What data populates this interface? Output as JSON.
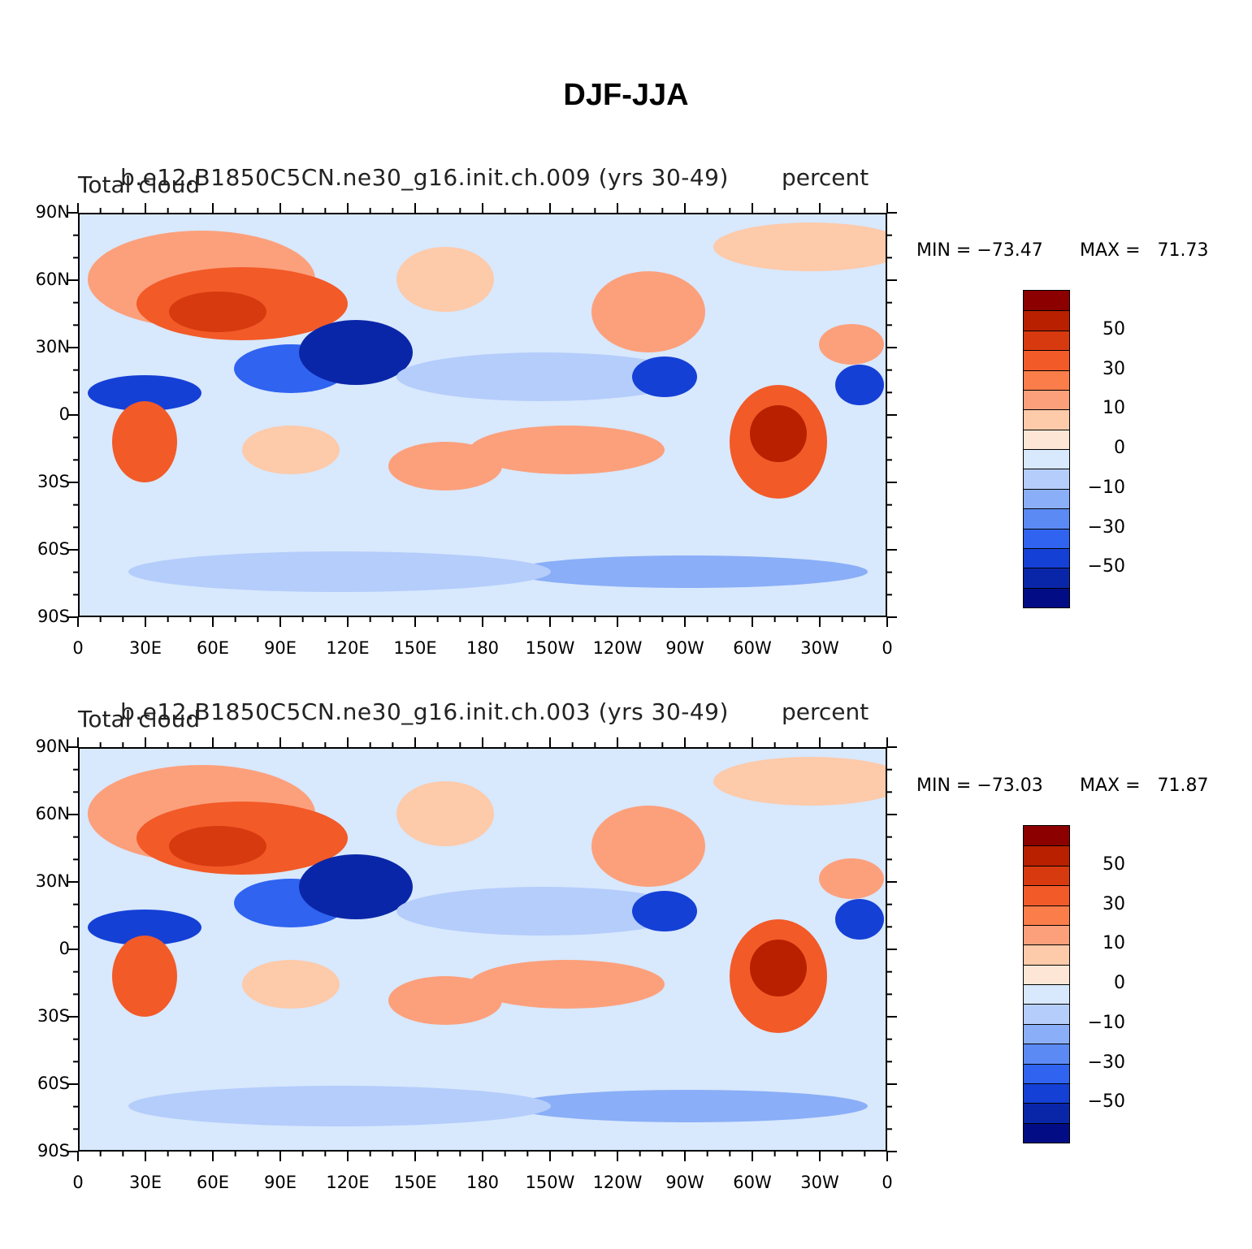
{
  "title": "DJF-JJA",
  "panels": [
    {
      "case_title": "b.e12.B1850C5CN.ne30_g16.init.ch.009 (yrs 30-49)",
      "variable": "Total cloud",
      "units": "percent",
      "min_label": "MIN = −73.47",
      "max_label": "MAX =   71.73"
    },
    {
      "case_title": "b.e12.B1850C5CN.ne30_g16.init.ch.003 (yrs 30-49)",
      "variable": "Total cloud",
      "units": "percent",
      "min_label": "MIN = −73.03",
      "max_label": "MAX =   71.87"
    }
  ],
  "lat_ticks": [
    "90N",
    "60N",
    "30N",
    "0",
    "30S",
    "60S",
    "90S"
  ],
  "lon_ticks": [
    "0",
    "30E",
    "60E",
    "90E",
    "120E",
    "150E",
    "180",
    "150W",
    "120W",
    "90W",
    "60W",
    "30W",
    "0"
  ],
  "legend_labels": [
    "50",
    "30",
    "10",
    "0",
    "−10",
    "−30",
    "−50"
  ],
  "colors": {
    "palette": [
      "#8c0000",
      "#b82000",
      "#d83a10",
      "#f25a28",
      "#fb7d4a",
      "#fca07c",
      "#fdcaaa",
      "#fde6d6",
      "#d8e8fd",
      "#b4cdfb",
      "#8aaef7",
      "#5b8af5",
      "#2f63f0",
      "#1540d6",
      "#0a26a8",
      "#020d85"
    ]
  }
}
